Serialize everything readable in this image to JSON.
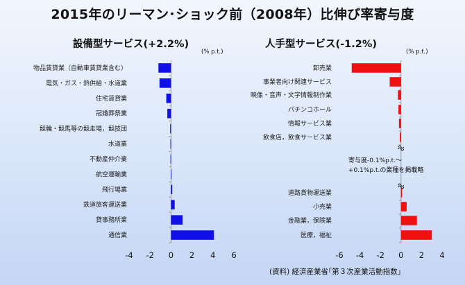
{
  "title": "2015年のリーマン･ショック前（2008年）比伸び率寄与度",
  "source": "(資料) 経済産業省｢第３次産業活動指数｣",
  "chart_data": [
    {
      "type": "bar",
      "orientation": "horizontal",
      "title": "設備型サービス(+2.2%)",
      "unit": "(% p.t.)",
      "color": "#1010e8",
      "xlim": [
        -4,
        6
      ],
      "ticks": [
        -4,
        -2,
        0,
        2,
        4,
        6
      ],
      "categories": [
        "物品賃貸業（自動車賃貸業含む）",
        "電気・ガス・熱供給・水道業",
        "住宅賃貸業",
        "冠婚葬祭業",
        "競輪・競馬等の競走場，競技団",
        "水道業",
        "不動産仲介業",
        "航空運輸業",
        "飛行場業",
        "鉄道旅客運送業",
        "貸事務所業",
        "通信業"
      ],
      "values": [
        -1.2,
        -1.1,
        -0.45,
        -0.35,
        -0.08,
        -0.06,
        -0.05,
        0.05,
        0.12,
        0.35,
        1.1,
        4.1
      ]
    },
    {
      "type": "bar",
      "orientation": "horizontal",
      "title": "人手型サービス(-1.2%)",
      "unit": "(% p.t.)",
      "color": "#f01010",
      "xlim": [
        -6,
        4
      ],
      "ticks": [
        -6,
        -4,
        -2,
        0,
        2,
        4
      ],
      "categories": [
        "卸売業",
        "事業者向け関連サービス",
        "映像・音声・文字情報制作業",
        "パチンコホール",
        "情報サービス業",
        "飲食店，飲食サービス業",
        "道路貨物運送業",
        "小売業",
        "金融業，保険業",
        "医療，福祉"
      ],
      "values": [
        -4.8,
        -1.1,
        -0.3,
        -0.25,
        -0.2,
        -0.12,
        0.1,
        0.55,
        1.55,
        3.0
      ],
      "annotation": [
        "寄与度-0.1%p.t.～",
        "+0.1%p.t.の業種を掲載略"
      ]
    }
  ]
}
